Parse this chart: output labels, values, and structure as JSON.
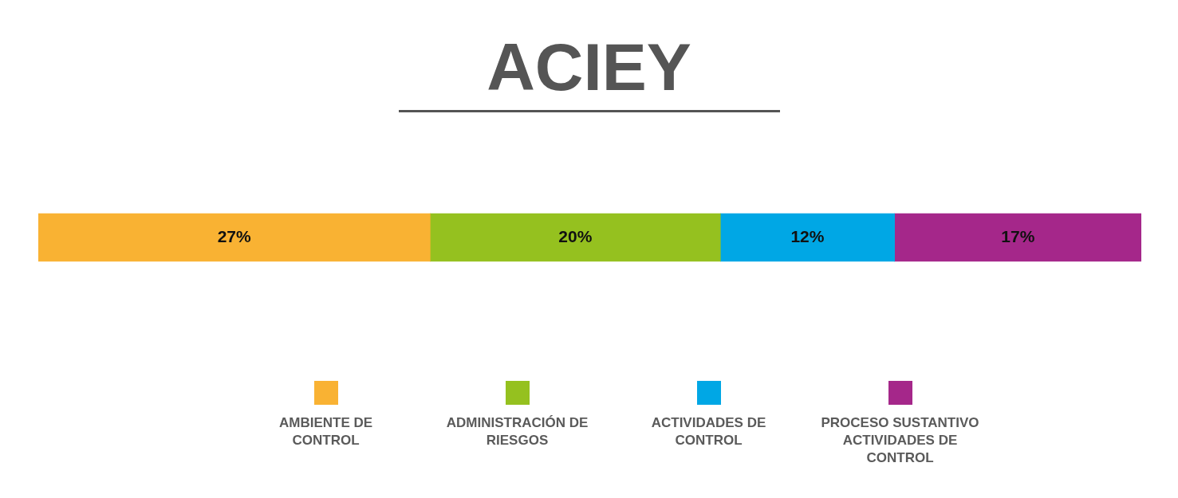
{
  "chart_data": {
    "type": "bar",
    "title": "ACIEY",
    "orientation": "horizontal",
    "stacked": true,
    "categories": [
      null
    ],
    "xlim": [
      0,
      76
    ],
    "legend": "bottom",
    "series": [
      {
        "name": "AMBIENTE DE CONTROL",
        "color": "#f9b233",
        "values": [
          27
        ],
        "value_labels": [
          "27%"
        ]
      },
      {
        "name": "ADMINISTRACIÓN DE RIESGOS",
        "color": "#95c11f",
        "values": [
          20
        ],
        "value_labels": [
          "20%"
        ]
      },
      {
        "name": "ACTIVIDADES DE CONTROL",
        "color": "#00a7e5",
        "values": [
          12
        ],
        "value_labels": [
          "12%"
        ]
      },
      {
        "name": "PROCESO SUSTANTIVO ACTIVIDADES DE CONTROL",
        "color": "#a5278a",
        "values": [
          17
        ],
        "value_labels": [
          "17%"
        ]
      }
    ]
  }
}
